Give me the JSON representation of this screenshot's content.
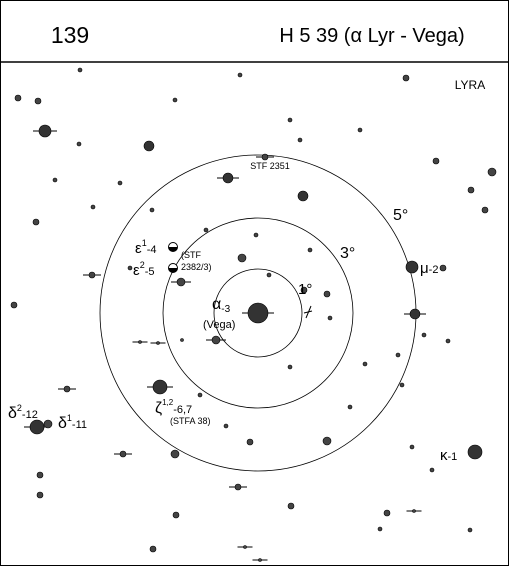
{
  "header": {
    "number": "139",
    "title": "H 5 39 (α Lyr - Vega)"
  },
  "map": {
    "constellation": "LYRA",
    "circles": [
      "1°",
      "3°",
      "5°"
    ],
    "labels": {
      "stf2351": "STF 2351",
      "eps1": {
        "symbol": "ε",
        "sup": "1",
        "text": "-4"
      },
      "eps_note": [
        "(STF",
        "2382/3)"
      ],
      "eps2": {
        "symbol": "ε",
        "sup": "2",
        "text": "-5"
      },
      "mu": {
        "symbol": "μ",
        "text": "-2"
      },
      "alpha": {
        "symbol": "α",
        "text": "-3",
        "note": "(Vega)"
      },
      "zeta": {
        "symbol": "ζ",
        "sup": "1,2",
        "text": "-6,7",
        "note": "(STFA 38)"
      },
      "delta2": {
        "symbol": "δ",
        "sup": "2",
        "text": "-12"
      },
      "delta1": {
        "symbol": "δ",
        "sup": "1",
        "text": "-11"
      },
      "kappa": {
        "symbol": "κ",
        "text": "-1"
      }
    }
  }
}
